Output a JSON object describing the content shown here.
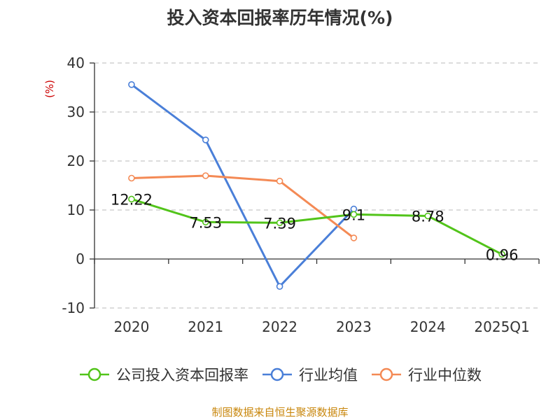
{
  "chart_title": "投入资本回报率历年情况(%)",
  "source_note": "制图数据来自恒生聚源数据库",
  "colors": {
    "company": "#52c41a",
    "industry_avg": "#4a7fd8",
    "industry_median": "#f48a55",
    "grid": "#c8c8c8",
    "axis": "#333333",
    "unit": "#cc0000"
  },
  "chart_data": {
    "type": "line",
    "title": "投入资本回报率历年情况(%)",
    "ylabel": "(%)",
    "ylim": [
      -10,
      40
    ],
    "yticks": [
      -10,
      0,
      10,
      20,
      30,
      40
    ],
    "grid": true,
    "legend_position": "bottom",
    "categories": [
      "2020",
      "2021",
      "2022",
      "2023",
      "2024",
      "2025Q1"
    ],
    "series": [
      {
        "name": "公司投入资本回报率",
        "color_key": "company",
        "values": [
          12.22,
          7.53,
          7.39,
          9.1,
          8.78,
          0.96
        ],
        "labels": [
          "12.22",
          "7.53",
          "7.39",
          "9.1",
          "8.78",
          "0.96"
        ]
      },
      {
        "name": "行业均值",
        "color_key": "industry_avg",
        "values": [
          35.6,
          24.3,
          -5.6,
          10.2,
          null,
          null
        ]
      },
      {
        "name": "行业中位数",
        "color_key": "industry_median",
        "values": [
          16.5,
          17.0,
          15.9,
          4.3,
          null,
          null
        ]
      }
    ]
  }
}
